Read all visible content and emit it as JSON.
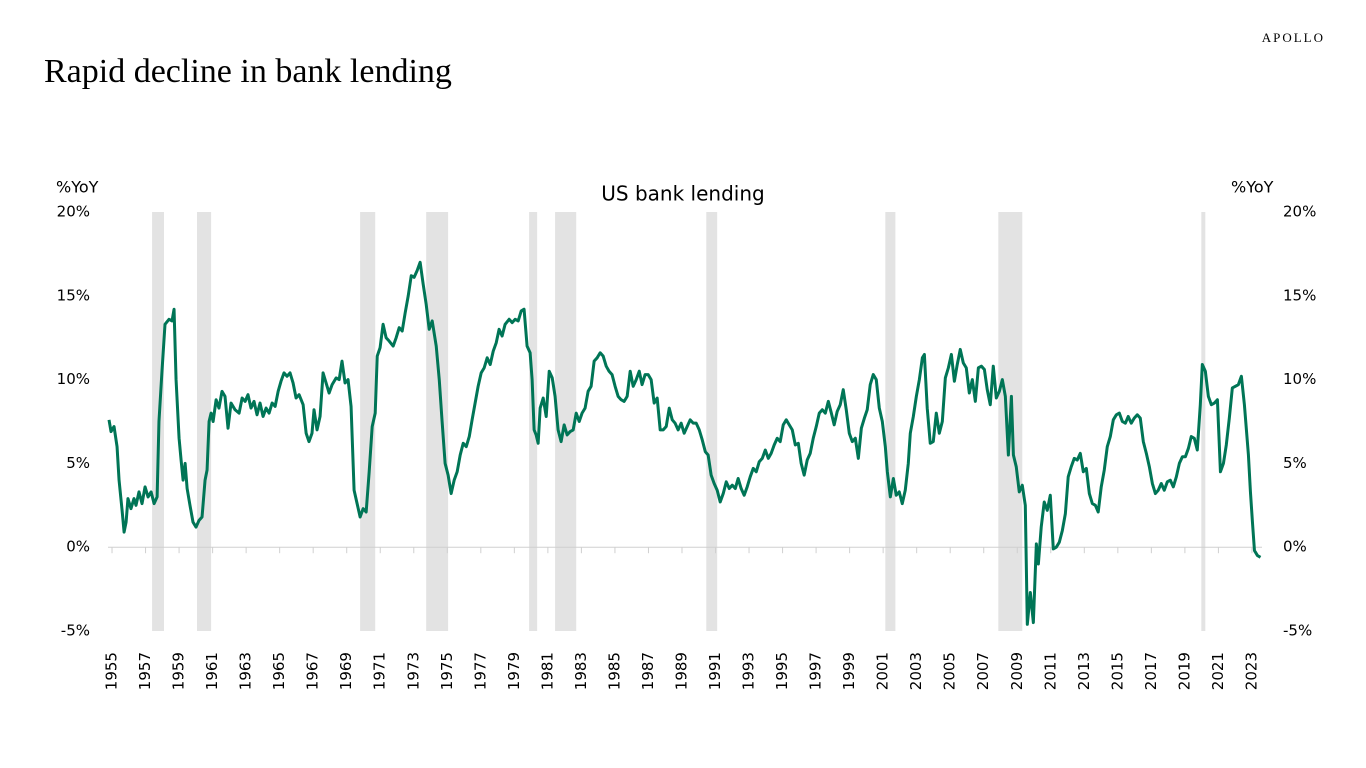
{
  "brand": "APOLLO",
  "chart_data": {
    "type": "line",
    "page_title": "Rapid decline in bank lending",
    "title": "US bank lending",
    "y_axis_label": "%YoY",
    "y2_axis_label": "%YoY",
    "xlim": [
      1954.76,
      2023.6
    ],
    "xticks": [
      1955,
      1957,
      1959,
      1961,
      1963,
      1965,
      1967,
      1969,
      1971,
      1973,
      1975,
      1977,
      1979,
      1981,
      1983,
      1985,
      1987,
      1989,
      1991,
      1993,
      1995,
      1997,
      1999,
      2001,
      2003,
      2005,
      2007,
      2009,
      2011,
      2013,
      2015,
      2017,
      2019,
      2021,
      2023
    ],
    "ylim": [
      -5,
      20
    ],
    "yticks": [
      {
        "value": -5,
        "label": "-5%"
      },
      {
        "value": 0,
        "label": "0%"
      },
      {
        "value": 5,
        "label": "5%"
      },
      {
        "value": 10,
        "label": "10%"
      },
      {
        "value": 15,
        "label": "15%"
      },
      {
        "value": 20,
        "label": "20%"
      }
    ],
    "y2lim": [
      -5,
      20
    ],
    "y2ticks": [
      {
        "value": -5,
        "label": "-5%"
      },
      {
        "value": 0,
        "label": "0%"
      },
      {
        "value": 5,
        "label": "5%"
      },
      {
        "value": 10,
        "label": "10%"
      },
      {
        "value": 15,
        "label": "15%"
      },
      {
        "value": 20,
        "label": "20%"
      }
    ],
    "recessions": [
      [
        1957.39,
        1958.1
      ],
      [
        1960.07,
        1960.91
      ],
      [
        1969.8,
        1970.7
      ],
      [
        1973.74,
        1975.05
      ],
      [
        1979.88,
        1980.36
      ],
      [
        1981.43,
        1982.69
      ],
      [
        1990.45,
        1991.1
      ],
      [
        2001.13,
        2001.73
      ],
      [
        2007.87,
        2009.3
      ],
      [
        2019.98,
        2020.22
      ]
    ],
    "recession_color": "#e3e3e3",
    "x": [
      1954.82,
      1954.94,
      1955.12,
      1955.3,
      1955.42,
      1955.6,
      1955.72,
      1955.84,
      1955.95,
      1956.13,
      1956.31,
      1956.43,
      1956.61,
      1956.79,
      1956.97,
      1957.15,
      1957.33,
      1957.51,
      1957.69,
      1957.8,
      1957.98,
      1958.16,
      1958.4,
      1958.58,
      1958.7,
      1958.82,
      1959.0,
      1959.12,
      1959.24,
      1959.36,
      1959.48,
      1959.65,
      1959.83,
      1960.01,
      1960.19,
      1960.37,
      1960.55,
      1960.67,
      1960.79,
      1960.91,
      1961.03,
      1961.21,
      1961.38,
      1961.56,
      1961.74,
      1961.92,
      1962.1,
      1962.34,
      1962.58,
      1962.76,
      1962.94,
      1963.11,
      1963.29,
      1963.47,
      1963.65,
      1963.83,
      1964.01,
      1964.19,
      1964.37,
      1964.55,
      1964.73,
      1964.91,
      1965.08,
      1965.26,
      1965.44,
      1965.62,
      1965.8,
      1965.98,
      1966.16,
      1966.4,
      1966.58,
      1966.75,
      1966.93,
      1967.05,
      1967.23,
      1967.41,
      1967.59,
      1967.77,
      1967.95,
      1968.13,
      1968.37,
      1968.55,
      1968.72,
      1968.9,
      1969.08,
      1969.26,
      1969.44,
      1969.62,
      1969.8,
      1969.98,
      1970.16,
      1970.34,
      1970.52,
      1970.7,
      1970.82,
      1970.99,
      1971.17,
      1971.35,
      1971.53,
      1971.77,
      1971.95,
      1972.13,
      1972.31,
      1972.49,
      1972.67,
      1972.85,
      1973.02,
      1973.2,
      1973.38,
      1973.56,
      1973.74,
      1973.92,
      1974.1,
      1974.34,
      1974.52,
      1974.69,
      1974.87,
      1975.05,
      1975.23,
      1975.41,
      1975.59,
      1975.77,
      1975.95,
      1976.13,
      1976.31,
      1976.48,
      1976.66,
      1976.84,
      1977.02,
      1977.2,
      1977.38,
      1977.56,
      1977.74,
      1977.92,
      1978.09,
      1978.27,
      1978.45,
      1978.69,
      1978.87,
      1979.05,
      1979.23,
      1979.41,
      1979.58,
      1979.76,
      1979.94,
      1980.06,
      1980.18,
      1980.3,
      1980.42,
      1980.54,
      1980.72,
      1980.9,
      1981.08,
      1981.26,
      1981.43,
      1981.61,
      1981.79,
      1981.97,
      1982.15,
      1982.33,
      1982.51,
      1982.69,
      1982.87,
      1983.04,
      1983.22,
      1983.4,
      1983.58,
      1983.76,
      1983.94,
      1984.12,
      1984.3,
      1984.48,
      1984.65,
      1984.83,
      1985.01,
      1985.19,
      1985.37,
      1985.55,
      1985.73,
      1985.91,
      1986.09,
      1986.27,
      1986.45,
      1986.62,
      1986.8,
      1986.98,
      1987.16,
      1987.34,
      1987.52,
      1987.7,
      1987.88,
      1988.06,
      1988.24,
      1988.42,
      1988.59,
      1988.77,
      1988.95,
      1989.13,
      1989.31,
      1989.49,
      1989.67,
      1989.85,
      1990.03,
      1990.21,
      1990.39,
      1990.56,
      1990.74,
      1990.92,
      1991.1,
      1991.28,
      1991.46,
      1991.64,
      1991.82,
      1992.0,
      1992.18,
      1992.35,
      1992.53,
      1992.71,
      1992.89,
      1993.07,
      1993.25,
      1993.43,
      1993.61,
      1993.79,
      1993.97,
      1994.15,
      1994.32,
      1994.5,
      1994.68,
      1994.86,
      1995.04,
      1995.22,
      1995.4,
      1995.58,
      1995.76,
      1995.94,
      1996.11,
      1996.29,
      1996.47,
      1996.65,
      1996.83,
      1997.01,
      1997.19,
      1997.37,
      1997.55,
      1997.73,
      1997.91,
      1998.08,
      1998.26,
      1998.44,
      1998.62,
      1998.8,
      1998.98,
      1999.16,
      1999.34,
      1999.52,
      1999.7,
      1999.88,
      2000.05,
      2000.23,
      2000.41,
      2000.59,
      2000.77,
      2000.95,
      2001.13,
      2001.25,
      2001.43,
      2001.61,
      2001.78,
      2001.96,
      2002.14,
      2002.32,
      2002.5,
      2002.62,
      2002.8,
      2002.98,
      2003.16,
      2003.34,
      2003.46,
      2003.63,
      2003.81,
      2003.99,
      2004.17,
      2004.35,
      2004.53,
      2004.71,
      2004.89,
      2005.07,
      2005.25,
      2005.42,
      2005.6,
      2005.78,
      2005.96,
      2006.14,
      2006.32,
      2006.5,
      2006.68,
      2006.86,
      2007.04,
      2007.21,
      2007.39,
      2007.57,
      2007.75,
      2007.93,
      2008.11,
      2008.29,
      2008.47,
      2008.65,
      2008.77,
      2008.94,
      2009.12,
      2009.3,
      2009.48,
      2009.6,
      2009.78,
      2009.96,
      2010.14,
      2010.26,
      2010.43,
      2010.61,
      2010.79,
      2010.97,
      2011.15,
      2011.33,
      2011.51,
      2011.69,
      2011.87,
      2012.04,
      2012.22,
      2012.4,
      2012.58,
      2012.76,
      2012.94,
      2013.12,
      2013.3,
      2013.48,
      2013.66,
      2013.83,
      2014.01,
      2014.19,
      2014.37,
      2014.55,
      2014.73,
      2014.91,
      2015.09,
      2015.27,
      2015.45,
      2015.62,
      2015.8,
      2015.98,
      2016.16,
      2016.34,
      2016.52,
      2016.7,
      2016.88,
      2017.06,
      2017.24,
      2017.41,
      2017.59,
      2017.77,
      2017.95,
      2018.13,
      2018.31,
      2018.49,
      2018.67,
      2018.85,
      2019.03,
      2019.21,
      2019.38,
      2019.56,
      2019.74,
      2019.92,
      2020.04,
      2020.22,
      2020.4,
      2020.58,
      2020.76,
      2020.94,
      2021.12,
      2021.3,
      2021.47,
      2021.65,
      2021.83,
      2022.01,
      2022.19,
      2022.37,
      2022.55,
      2022.67,
      2022.79,
      2022.91,
      2023.03,
      2023.15,
      2023.33,
      2023.51
    ],
    "series": [
      {
        "name": "US bank lending",
        "color": "#007556",
        "values": [
          7.6,
          6.9,
          7.2,
          6.0,
          4.0,
          2.2,
          0.9,
          1.5,
          2.9,
          2.3,
          2.9,
          2.5,
          3.3,
          2.6,
          3.6,
          3.0,
          3.3,
          2.6,
          3.0,
          7.5,
          10.5,
          13.3,
          13.6,
          13.5,
          14.2,
          10.0,
          6.5,
          5.2,
          4.0,
          5.0,
          3.5,
          2.5,
          1.5,
          1.2,
          1.6,
          1.8,
          4.0,
          4.6,
          7.5,
          8.0,
          7.5,
          8.8,
          8.3,
          9.3,
          9.0,
          7.1,
          8.6,
          8.2,
          8.0,
          8.9,
          8.7,
          9.1,
          8.3,
          8.7,
          7.9,
          8.6,
          7.8,
          8.3,
          8.0,
          8.6,
          8.4,
          9.3,
          9.9,
          10.4,
          10.2,
          10.4,
          9.8,
          8.9,
          9.1,
          8.5,
          6.8,
          6.3,
          6.8,
          8.2,
          7.0,
          7.8,
          10.4,
          9.8,
          9.2,
          9.7,
          10.1,
          10.0,
          11.1,
          9.8,
          10.0,
          8.4,
          3.4,
          2.6,
          1.8,
          2.3,
          2.1,
          4.5,
          7.2,
          8.0,
          11.4,
          11.9,
          13.3,
          12.5,
          12.3,
          12.0,
          12.5,
          13.1,
          12.9,
          14.0,
          15.0,
          16.2,
          16.1,
          16.5,
          17.0,
          15.7,
          14.5,
          13.0,
          13.5,
          12.0,
          10.0,
          7.5,
          5.0,
          4.3,
          3.2,
          4.0,
          4.5,
          5.5,
          6.2,
          6.0,
          6.6,
          7.6,
          8.6,
          9.6,
          10.4,
          10.7,
          11.3,
          10.9,
          11.7,
          12.2,
          13.0,
          12.6,
          13.3,
          13.6,
          13.4,
          13.6,
          13.5,
          14.1,
          14.2,
          12.0,
          11.6,
          10.0,
          7.0,
          6.7,
          6.2,
          8.3,
          8.9,
          7.8,
          10.5,
          10.1,
          9.0,
          7.0,
          6.3,
          7.3,
          6.7,
          6.9,
          7.0,
          8.0,
          7.5,
          8.0,
          8.3,
          9.3,
          9.6,
          11.1,
          11.3,
          11.6,
          11.4,
          10.8,
          10.5,
          10.3,
          9.6,
          9.0,
          8.8,
          8.7,
          9.0,
          10.5,
          9.6,
          10.0,
          10.5,
          9.7,
          10.3,
          10.3,
          10.0,
          8.6,
          8.9,
          7.0,
          7.0,
          7.2,
          8.3,
          7.6,
          7.4,
          7.0,
          7.4,
          6.8,
          7.2,
          7.6,
          7.4,
          7.4,
          7.0,
          6.4,
          5.7,
          5.5,
          4.3,
          3.8,
          3.4,
          2.7,
          3.2,
          3.9,
          3.5,
          3.7,
          3.5,
          4.1,
          3.5,
          3.1,
          3.6,
          4.2,
          4.7,
          4.5,
          5.1,
          5.3,
          5.8,
          5.3,
          5.6,
          6.1,
          6.5,
          6.3,
          7.3,
          7.6,
          7.3,
          7.0,
          6.1,
          6.2,
          5.0,
          4.3,
          5.2,
          5.6,
          6.5,
          7.2,
          8.0,
          8.2,
          8.0,
          8.7,
          8.0,
          7.3,
          8.1,
          8.5,
          9.4,
          8.2,
          6.8,
          6.3,
          6.5,
          5.3,
          7.1,
          7.7,
          8.2,
          9.7,
          10.3,
          10.0,
          8.3,
          7.5,
          6.0,
          4.5,
          3.0,
          4.1,
          3.1,
          3.3,
          2.6,
          3.4,
          5.0,
          6.8,
          7.8,
          9.0,
          10.0,
          11.3,
          11.5,
          8.3,
          6.2,
          6.3,
          8.0,
          6.8,
          7.5,
          10.1,
          10.7,
          11.5,
          9.9,
          10.9,
          11.8,
          11.0,
          10.7,
          9.2,
          10.0,
          8.7,
          10.7,
          10.8,
          10.6,
          9.4,
          8.5,
          10.8,
          8.9,
          9.3,
          10.0,
          9.0,
          5.5,
          9.0,
          5.5,
          4.8,
          3.3,
          3.7,
          2.5,
          -4.6,
          -2.7,
          -4.5,
          0.2,
          -1.0,
          1.2,
          2.7,
          2.2,
          3.1,
          -0.1,
          0.0,
          0.3,
          1.0,
          2.0,
          4.2,
          4.8,
          5.3,
          5.2,
          5.6,
          4.5,
          4.7,
          3.2,
          2.6,
          2.5,
          2.1,
          3.6,
          4.6,
          6.0,
          6.6,
          7.6,
          7.9,
          8.0,
          7.5,
          7.4,
          7.8,
          7.4,
          7.7,
          7.9,
          7.7,
          6.3,
          5.6,
          4.8,
          3.8,
          3.2,
          3.4,
          3.8,
          3.4,
          3.9,
          4.0,
          3.6,
          4.2,
          5.0,
          5.4,
          5.4,
          5.9,
          6.6,
          6.5,
          5.8,
          8.5,
          10.9,
          10.5,
          9.0,
          8.5,
          8.6,
          8.8,
          4.5,
          5.0,
          6.1,
          7.7,
          9.5,
          9.6,
          9.7,
          10.2,
          8.5,
          7.0,
          5.5,
          3.3,
          1.5,
          -0.2,
          -0.5,
          -0.6
        ]
      }
    ]
  }
}
